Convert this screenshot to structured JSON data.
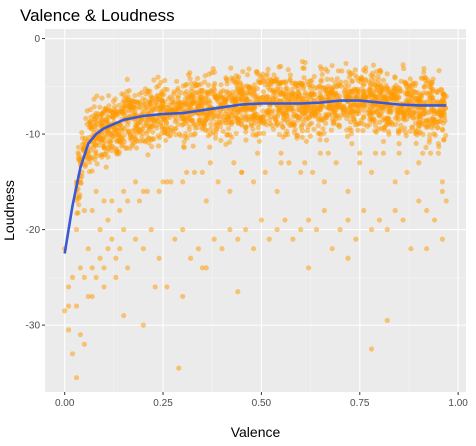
{
  "chart_data": {
    "type": "scatter",
    "title": "Valence & Loudness",
    "xlabel": "Valence",
    "ylabel": "Loudness",
    "xlim": [
      -0.05,
      1.02
    ],
    "ylim": [
      -37,
      1
    ],
    "x_ticks": [
      {
        "value": 0.0,
        "label": "0.00"
      },
      {
        "value": 0.25,
        "label": "0.25"
      },
      {
        "value": 0.5,
        "label": "0.50"
      },
      {
        "value": 0.75,
        "label": "0.75"
      },
      {
        "value": 1.0,
        "label": "1.00"
      }
    ],
    "y_ticks": [
      {
        "value": 0,
        "label": "0"
      },
      {
        "value": -10,
        "label": "-10"
      },
      {
        "value": -20,
        "label": "-20"
      },
      {
        "value": -30,
        "label": "-30"
      }
    ],
    "grid": true,
    "legend": "none",
    "colors": {
      "points": "#ff9900",
      "smooth": "#3b58d6",
      "panel": "#ebebeb",
      "grid_major": "#ffffff",
      "grid_minor": "#f5f5f5"
    },
    "point_opacity": 0.5,
    "series": [
      {
        "kind": "points",
        "x": [
          0.0,
          0.0,
          0.01,
          0.02,
          0.03,
          0.04,
          0.05,
          0.06,
          0.07,
          0.08,
          0.09,
          0.1,
          0.11,
          0.12,
          0.13,
          0.14,
          0.15,
          0.16,
          0.18,
          0.2,
          0.22,
          0.24,
          0.26,
          0.28,
          0.3,
          0.32,
          0.34,
          0.36,
          0.38,
          0.4,
          0.42,
          0.44,
          0.46,
          0.48,
          0.5,
          0.52,
          0.54,
          0.56,
          0.58,
          0.6,
          0.62,
          0.64,
          0.66,
          0.68,
          0.7,
          0.72,
          0.74,
          0.76,
          0.78,
          0.8,
          0.82,
          0.84,
          0.86,
          0.88,
          0.9,
          0.92,
          0.94,
          0.96,
          0.97,
          0.05,
          0.08,
          0.12,
          0.18,
          0.24,
          0.3,
          0.36,
          0.42,
          0.48,
          0.54,
          0.6,
          0.66,
          0.72,
          0.78,
          0.84,
          0.9,
          0.96,
          0.03,
          0.07,
          0.1,
          0.15,
          0.2,
          0.27,
          0.33,
          0.39,
          0.45,
          0.51,
          0.57,
          0.63,
          0.69,
          0.75,
          0.81,
          0.87,
          0.93,
          0.02,
          0.06,
          0.11,
          0.16,
          0.21,
          0.26,
          0.31,
          0.37,
          0.43,
          0.49,
          0.55,
          0.61,
          0.67,
          0.73,
          0.79,
          0.85,
          0.91,
          0.95,
          0.01,
          0.04,
          0.09,
          0.14,
          0.19,
          0.25,
          0.35,
          0.45,
          0.55,
          0.65,
          0.75,
          0.85,
          0.95,
          0.07,
          0.13,
          0.23,
          0.44,
          0.3,
          0.2,
          0.82,
          0.78,
          0.15,
          0.05,
          0.01,
          0.03,
          0.1,
          0.29,
          0.35,
          0.62,
          0.72,
          0.92,
          0.96
        ],
        "y": [
          -22,
          -28.5,
          -30.5,
          -33,
          -35.5,
          -31,
          -32,
          -27,
          -24,
          -25,
          -23,
          -26,
          -22,
          -21,
          -23,
          -22,
          -20,
          -24,
          -21,
          -22,
          -20,
          -23,
          -26,
          -21,
          -20,
          -23,
          -22,
          -24,
          -21,
          -22,
          -20,
          -21,
          -20,
          -22,
          -19,
          -21,
          -20,
          -19,
          -21,
          -20,
          -19,
          -20,
          -18,
          -22,
          -20,
          -19,
          -21,
          -18,
          -20,
          -19,
          -20,
          -18,
          -19,
          -22,
          -17,
          -18,
          -19,
          -16,
          -17,
          -18,
          -16,
          -17,
          -15,
          -16,
          -15,
          -17,
          -16,
          -15,
          -16,
          -14,
          -15,
          -16,
          -14,
          -15,
          -13,
          -15,
          -20,
          -18,
          -17,
          -16,
          -16,
          -15,
          -14,
          -15,
          -14,
          -14,
          -13,
          -14,
          -13,
          -13,
          -12,
          -14,
          -12,
          -25,
          -22,
          -19,
          -17,
          -16,
          -15,
          -14,
          -13,
          -13,
          -12,
          -12,
          -13,
          -12,
          -11,
          -12,
          -11,
          -12,
          -12,
          -28,
          -24,
          -20,
          -18,
          -17,
          -15,
          -14,
          -14,
          -13,
          -12,
          -12,
          -12,
          -11,
          -27,
          -25,
          -26,
          -26.5,
          -27,
          -30,
          -29.5,
          -32.5,
          -29,
          -25,
          -26,
          -28,
          -24,
          -34.5,
          -24,
          -24,
          -23,
          -22,
          -21
        ],
        "name": ""
      },
      {
        "kind": "smooth",
        "x": [
          0.0,
          0.02,
          0.04,
          0.06,
          0.08,
          0.1,
          0.15,
          0.2,
          0.25,
          0.3,
          0.35,
          0.4,
          0.45,
          0.5,
          0.55,
          0.6,
          0.65,
          0.7,
          0.75,
          0.8,
          0.85,
          0.9,
          0.95,
          0.97
        ],
        "y": [
          -22.5,
          -17.5,
          -13.5,
          -11.0,
          -10.0,
          -9.4,
          -8.5,
          -8.1,
          -7.9,
          -7.8,
          -7.5,
          -7.2,
          -6.9,
          -6.8,
          -6.8,
          -6.8,
          -6.7,
          -6.5,
          -6.5,
          -6.7,
          -6.9,
          -7.0,
          -7.0,
          -7.0
        ],
        "name": ""
      }
    ]
  }
}
